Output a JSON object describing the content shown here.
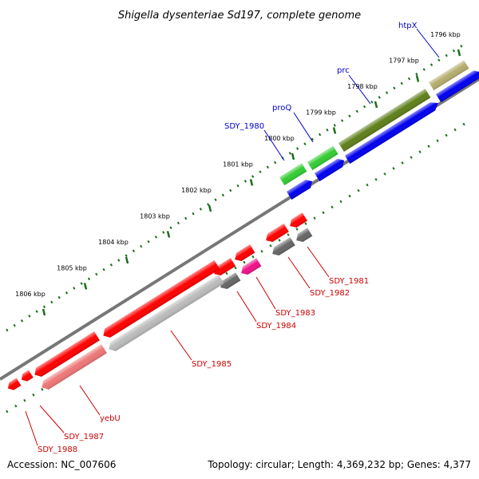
{
  "title": "Shigella dysenteriae Sd197, complete genome",
  "footer": {
    "accession": "Accession: NC_007606",
    "info": "Topology: circular; Length: 4,369,232 bp; Genes: 4,377"
  },
  "colors": {
    "label_forward": "#0000cc",
    "label_reverse": "#cc0000",
    "backbone": "#808080",
    "ticks": "#1a6e1a"
  },
  "kbp_markers": [
    {
      "label": "1796 kbp",
      "pos": 1796
    },
    {
      "label": "1797 kbp",
      "pos": 1797
    },
    {
      "label": "1798 kbp",
      "pos": 1798
    },
    {
      "label": "1799 kbp",
      "pos": 1799
    },
    {
      "label": "1800 kbp",
      "pos": 1800
    },
    {
      "label": "1801 kbp",
      "pos": 1801
    },
    {
      "label": "1802 kbp",
      "pos": 1802
    },
    {
      "label": "1803 kbp",
      "pos": 1803
    },
    {
      "label": "1804 kbp",
      "pos": 1804
    },
    {
      "label": "1805 kbp",
      "pos": 1805
    },
    {
      "label": "1806 kbp",
      "pos": 1806
    }
  ],
  "gene_labels": [
    {
      "id": "htpX",
      "label": "htpX",
      "strand": "forward"
    },
    {
      "id": "prc",
      "label": "prc",
      "strand": "forward"
    },
    {
      "id": "proQ",
      "label": "proQ",
      "strand": "forward"
    },
    {
      "id": "SDY_1980",
      "label": "SDY_1980",
      "strand": "forward"
    },
    {
      "id": "SDY_1981",
      "label": "SDY_1981",
      "strand": "reverse"
    },
    {
      "id": "SDY_1982",
      "label": "SDY_1982",
      "strand": "reverse"
    },
    {
      "id": "SDY_1983",
      "label": "SDY_1983",
      "strand": "reverse"
    },
    {
      "id": "SDY_1984",
      "label": "SDY_1984",
      "strand": "reverse"
    },
    {
      "id": "SDY_1985",
      "label": "SDY_1985",
      "strand": "reverse"
    },
    {
      "id": "yebU",
      "label": "yebU",
      "strand": "reverse"
    },
    {
      "id": "SDY_1987",
      "label": "SDY_1987",
      "strand": "reverse"
    },
    {
      "id": "SDY_1988",
      "label": "SDY_1988",
      "strand": "reverse"
    }
  ]
}
